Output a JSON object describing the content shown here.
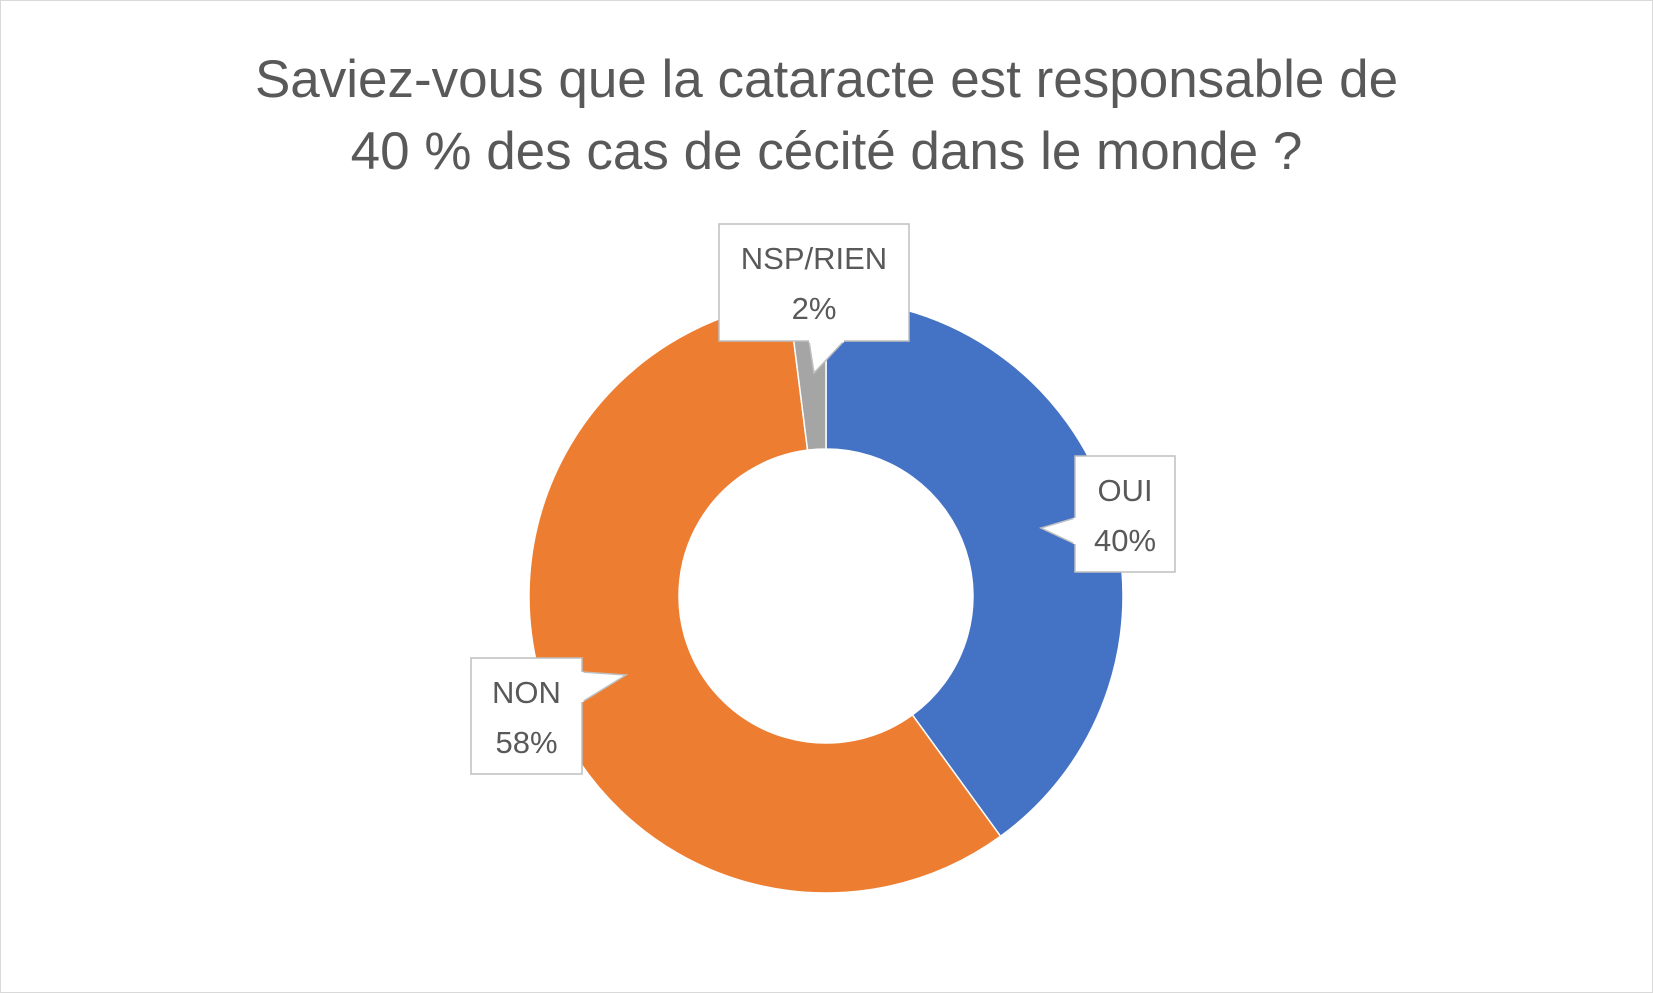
{
  "chart_data": {
    "type": "pie",
    "variant": "doughnut",
    "title_lines": [
      "Saviez-vous que la cataracte est responsable de",
      "40 % des cas de cécité dans le monde ?"
    ],
    "slices": [
      {
        "label": "OUI",
        "value": 40,
        "display": "40%",
        "color": "#4472C4"
      },
      {
        "label": "NON",
        "value": 58,
        "display": "58%",
        "color": "#ED7D31"
      },
      {
        "label": "NSP/RIEN",
        "value": 2,
        "display": "2%",
        "color": "#A5A5A5"
      }
    ],
    "start_angle": "12 o'clock",
    "direction": "clockwise",
    "legend": "none",
    "data_labels": "callouts with category name and percentage"
  }
}
